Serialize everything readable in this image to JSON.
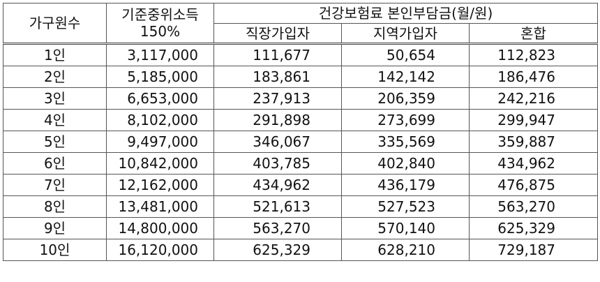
{
  "headers": {
    "household_size": "가구원수",
    "income_line1": "기준중위소득",
    "income_line2": "150%",
    "premium_group": "건강보험료 본인부담금(월/원)",
    "employee": "직장가입자",
    "regional": "지역가입자",
    "mixed": "혼합"
  },
  "rows": [
    {
      "size": "1인",
      "income": "3,117,000",
      "employee": "111,677",
      "regional": "50,654",
      "mixed": "112,823"
    },
    {
      "size": "2인",
      "income": "5,185,000",
      "employee": "183,861",
      "regional": "142,142",
      "mixed": "186,476"
    },
    {
      "size": "3인",
      "income": "6,653,000",
      "employee": "237,913",
      "regional": "206,359",
      "mixed": "242,216"
    },
    {
      "size": "4인",
      "income": "8,102,000",
      "employee": "291,898",
      "regional": "273,699",
      "mixed": "299,947"
    },
    {
      "size": "5인",
      "income": "9,497,000",
      "employee": "346,067",
      "regional": "335,569",
      "mixed": "359,887"
    },
    {
      "size": "6인",
      "income": "10,842,000",
      "employee": "403,785",
      "regional": "402,840",
      "mixed": "434,962"
    },
    {
      "size": "7인",
      "income": "12,162,000",
      "employee": "434,962",
      "regional": "436,179",
      "mixed": "476,875"
    },
    {
      "size": "8인",
      "income": "13,481,000",
      "employee": "521,613",
      "regional": "527,523",
      "mixed": "563,270"
    },
    {
      "size": "9인",
      "income": "14,800,000",
      "employee": "563,270",
      "regional": "570,140",
      "mixed": "625,329"
    },
    {
      "size": "10인",
      "income": "16,120,000",
      "employee": "625,329",
      "regional": "628,210",
      "mixed": "729,187"
    }
  ]
}
